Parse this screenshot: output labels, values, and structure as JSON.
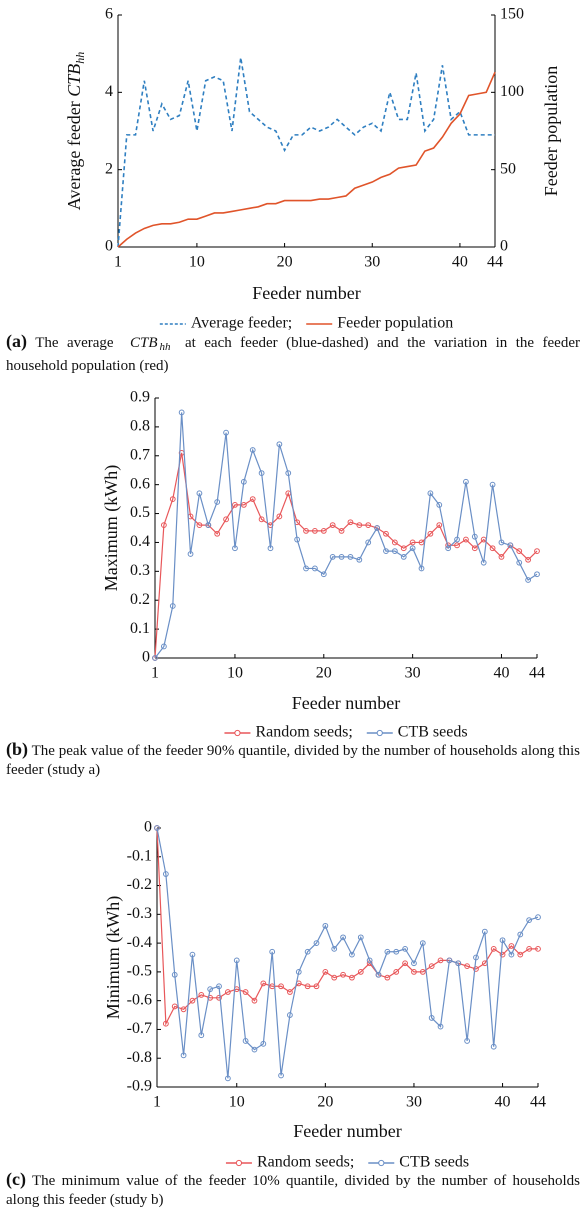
{
  "chart_data": [
    {
      "type": "line",
      "ylabel": "Average feeder ",
      "ylabel_symbol": "CTB",
      "ylabel_subscript": "hh",
      "y2label": "Feeder population",
      "xlabel": "Feeder number",
      "x": [
        1,
        2,
        3,
        4,
        5,
        6,
        7,
        8,
        9,
        10,
        11,
        12,
        13,
        14,
        15,
        16,
        17,
        18,
        19,
        20,
        21,
        22,
        23,
        24,
        25,
        26,
        27,
        28,
        29,
        30,
        31,
        32,
        33,
        34,
        35,
        36,
        37,
        38,
        39,
        40,
        41,
        42,
        43,
        44
      ],
      "xlim": [
        1,
        44
      ],
      "xticks": [
        1,
        10,
        20,
        30,
        40,
        44
      ],
      "ylim": [
        0,
        6
      ],
      "yticks": [
        0,
        2,
        4,
        6
      ],
      "y2lim": [
        0,
        150
      ],
      "y2ticks": [
        0,
        50,
        100,
        150
      ],
      "series": [
        {
          "name": "Average feeder;",
          "color": "#2f7fc1",
          "linestyle": "dashed",
          "values": [
            0,
            2.9,
            2.9,
            4.3,
            3.0,
            3.7,
            3.3,
            3.4,
            4.3,
            3.0,
            4.3,
            4.4,
            4.3,
            3.0,
            4.9,
            3.5,
            3.3,
            3.1,
            3.0,
            2.5,
            2.9,
            2.9,
            3.1,
            3.0,
            3.1,
            3.3,
            3.1,
            2.9,
            3.1,
            3.2,
            3.0,
            4.0,
            3.3,
            3.3,
            4.5,
            3.0,
            3.3,
            4.7,
            3.3,
            3.5,
            2.9,
            2.9,
            2.9,
            2.9
          ]
        },
        {
          "name": "Feeder population",
          "color": "#e0542a",
          "linestyle": "solid",
          "axis": "y2",
          "values": [
            0,
            5,
            9,
            12,
            14,
            15,
            15,
            16,
            18,
            18,
            20,
            22,
            22,
            23,
            24,
            25,
            26,
            28,
            28,
            30,
            30,
            30,
            30,
            31,
            31,
            32,
            33,
            38,
            40,
            42,
            45,
            47,
            51,
            52,
            53,
            62,
            64,
            71,
            80,
            86,
            98,
            99,
            100,
            113
          ]
        }
      ],
      "caption_label": "(a)",
      "caption": [
        "The average ",
        "CTB",
        "hh",
        " at each feeder (blue-dashed) and the variation in the feeder household population (red)"
      ]
    },
    {
      "type": "line",
      "ylabel": "Maximum (kWh)",
      "xlabel": "Feeder number",
      "x": [
        1,
        2,
        3,
        4,
        5,
        6,
        7,
        8,
        9,
        10,
        11,
        12,
        13,
        14,
        15,
        16,
        17,
        18,
        19,
        20,
        21,
        22,
        23,
        24,
        25,
        26,
        27,
        28,
        29,
        30,
        31,
        32,
        33,
        34,
        35,
        36,
        37,
        38,
        39,
        40,
        41,
        42,
        43,
        44
      ],
      "xlim": [
        1,
        44
      ],
      "xticks": [
        1,
        10,
        20,
        30,
        40,
        44
      ],
      "ylim": [
        0,
        0.9
      ],
      "yticks": [
        0,
        0.1,
        0.2,
        0.3,
        0.4,
        0.5,
        0.6,
        0.7,
        0.8,
        0.9
      ],
      "series": [
        {
          "name": "Random seeds;",
          "color": "#e8575a",
          "linestyle": "solid",
          "marker": "circle",
          "values": [
            0,
            0.46,
            0.55,
            0.71,
            0.49,
            0.46,
            0.46,
            0.43,
            0.48,
            0.53,
            0.53,
            0.55,
            0.48,
            0.46,
            0.49,
            0.57,
            0.47,
            0.44,
            0.44,
            0.44,
            0.46,
            0.44,
            0.47,
            0.46,
            0.46,
            0.45,
            0.43,
            0.4,
            0.38,
            0.4,
            0.4,
            0.43,
            0.46,
            0.39,
            0.39,
            0.41,
            0.38,
            0.41,
            0.38,
            0.35,
            0.39,
            0.37,
            0.34,
            0.37
          ]
        },
        {
          "name": "CTB seeds",
          "color": "#6a8fc6",
          "linestyle": "solid",
          "marker": "circle",
          "values": [
            0,
            0.04,
            0.18,
            0.85,
            0.36,
            0.57,
            0.46,
            0.54,
            0.78,
            0.38,
            0.61,
            0.72,
            0.64,
            0.38,
            0.74,
            0.64,
            0.41,
            0.31,
            0.31,
            0.29,
            0.35,
            0.35,
            0.35,
            0.34,
            0.4,
            0.45,
            0.37,
            0.37,
            0.35,
            0.38,
            0.31,
            0.57,
            0.53,
            0.38,
            0.41,
            0.61,
            0.42,
            0.33,
            0.6,
            0.4,
            0.39,
            0.33,
            0.27,
            0.29
          ]
        }
      ],
      "caption_label": "(b)",
      "caption": [
        "The peak value of the feeder 90% quantile, divided by the number of households along this feeder (study a)"
      ]
    },
    {
      "type": "line",
      "ylabel": "Minimum (kWh)",
      "xlabel": "Feeder number",
      "x": [
        1,
        2,
        3,
        4,
        5,
        6,
        7,
        8,
        9,
        10,
        11,
        12,
        13,
        14,
        15,
        16,
        17,
        18,
        19,
        20,
        21,
        22,
        23,
        24,
        25,
        26,
        27,
        28,
        29,
        30,
        31,
        32,
        33,
        34,
        35,
        36,
        37,
        38,
        39,
        40,
        41,
        42,
        43,
        44
      ],
      "xlim": [
        1,
        44
      ],
      "xticks": [
        1,
        10,
        20,
        30,
        40,
        44
      ],
      "ylim": [
        -0.9,
        0
      ],
      "yticks": [
        0,
        -0.1,
        -0.2,
        -0.3,
        -0.4,
        -0.5,
        -0.6,
        -0.7,
        -0.8,
        -0.9
      ],
      "series": [
        {
          "name": "Random seeds;",
          "color": "#e8575a",
          "linestyle": "solid",
          "marker": "circle",
          "values": [
            0,
            -0.68,
            -0.62,
            -0.63,
            -0.6,
            -0.58,
            -0.59,
            -0.59,
            -0.57,
            -0.56,
            -0.57,
            -0.6,
            -0.54,
            -0.55,
            -0.55,
            -0.57,
            -0.54,
            -0.55,
            -0.55,
            -0.5,
            -0.52,
            -0.51,
            -0.52,
            -0.5,
            -0.47,
            -0.51,
            -0.52,
            -0.5,
            -0.47,
            -0.5,
            -0.5,
            -0.48,
            -0.46,
            -0.46,
            -0.47,
            -0.48,
            -0.49,
            -0.47,
            -0.42,
            -0.44,
            -0.41,
            -0.44,
            -0.42,
            -0.42
          ]
        },
        {
          "name": "CTB seeds",
          "color": "#6a8fc6",
          "linestyle": "solid",
          "marker": "circle",
          "values": [
            0,
            -0.16,
            -0.51,
            -0.79,
            -0.44,
            -0.72,
            -0.56,
            -0.55,
            -0.87,
            -0.46,
            -0.74,
            -0.77,
            -0.75,
            -0.43,
            -0.86,
            -0.65,
            -0.5,
            -0.43,
            -0.4,
            -0.34,
            -0.42,
            -0.38,
            -0.44,
            -0.38,
            -0.46,
            -0.51,
            -0.43,
            -0.43,
            -0.42,
            -0.47,
            -0.4,
            -0.66,
            -0.69,
            -0.46,
            -0.47,
            -0.74,
            -0.45,
            -0.36,
            -0.76,
            -0.39,
            -0.44,
            -0.37,
            -0.32,
            -0.31
          ]
        }
      ],
      "caption_label": "(c)",
      "caption": [
        "The minimum value of the feeder 10% quantile, divided by the number of households along this feeder (study b)"
      ]
    }
  ]
}
